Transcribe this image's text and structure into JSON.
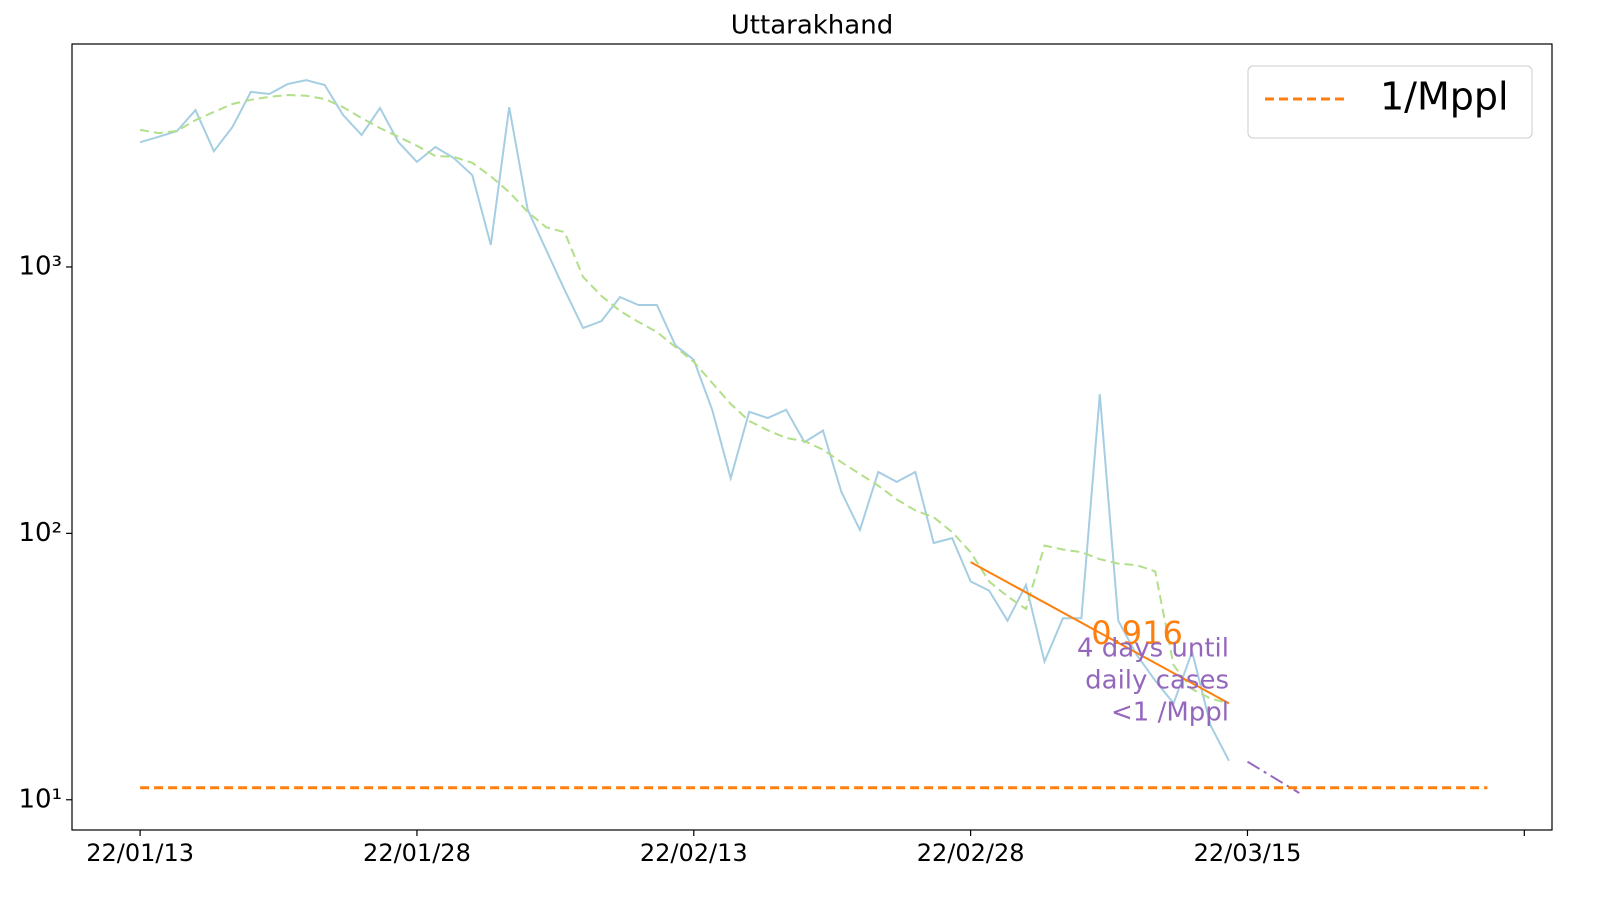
{
  "chart_data": {
    "type": "line",
    "title": "Uttarakhand",
    "yscale": "log",
    "legend": "upper right",
    "xlim": [
      -3.69,
      76.5
    ],
    "ylim": [
      7.7,
      6870
    ],
    "xticks": [
      {
        "value": 0,
        "label": "22/01/13"
      },
      {
        "value": 15,
        "label": "22/01/28"
      },
      {
        "value": 30,
        "label": "22/02/13"
      },
      {
        "value": 45,
        "label": "22/02/28"
      },
      {
        "value": 60,
        "label": "22/03/15"
      },
      {
        "value": 75,
        "label": null
      }
    ],
    "yticks": [
      {
        "value": 10,
        "label": "10¹"
      },
      {
        "value": 100,
        "label": "10²"
      },
      {
        "value": 1000,
        "label": "10³"
      }
    ],
    "series": [
      {
        "color": "#a6cee3",
        "style": "solid",
        "width": 2,
        "x": [
          0,
          1,
          2,
          3,
          4,
          5,
          6,
          7,
          8,
          9,
          10,
          11,
          12,
          13,
          14,
          15,
          16,
          17,
          18,
          19,
          20,
          21,
          22,
          23,
          24,
          25,
          26,
          27,
          28,
          29,
          30,
          31,
          32,
          33,
          34,
          35,
          36,
          37,
          38,
          39,
          40,
          41,
          42,
          43,
          44,
          45,
          46,
          47,
          48,
          49,
          50,
          51,
          52,
          53,
          54,
          55,
          56,
          57,
          58,
          59
        ],
        "values": [
          2940,
          3080,
          3240,
          3880,
          2720,
          3350,
          4540,
          4460,
          4860,
          5030,
          4820,
          3720,
          3130,
          3950,
          2940,
          2480,
          2820,
          2560,
          2210,
          1210,
          3980,
          1640,
          1160,
          820,
          590,
          627,
          771,
          720,
          720,
          509,
          448,
          291,
          161,
          286,
          271,
          291,
          220,
          243,
          143,
          103,
          170,
          156,
          170,
          92,
          96,
          66,
          61,
          47,
          64,
          33,
          48,
          48,
          333,
          47,
          35,
          28,
          23,
          36,
          19,
          14
        ]
      },
      {
        "color": "#b2df8a",
        "style": "dashed",
        "width": 2,
        "x": [
          0,
          1,
          2,
          3,
          4,
          5,
          6,
          7,
          8,
          9,
          10,
          11,
          12,
          13,
          14,
          15,
          16,
          17,
          18,
          19,
          20,
          21,
          22,
          23,
          24,
          25,
          26,
          27,
          28,
          29,
          30,
          31,
          32,
          33,
          34,
          35,
          36,
          37,
          38,
          39,
          40,
          41,
          42,
          43,
          44,
          45,
          46,
          47,
          48,
          49,
          50,
          51,
          52,
          53,
          54,
          55,
          56,
          57,
          58,
          59
        ],
        "values": [
          3270,
          3180,
          3240,
          3560,
          3820,
          4090,
          4240,
          4350,
          4420,
          4390,
          4270,
          3980,
          3620,
          3320,
          3080,
          2850,
          2610,
          2590,
          2460,
          2190,
          1910,
          1610,
          1410,
          1350,
          917,
          778,
          684,
          622,
          570,
          501,
          440,
          367,
          306,
          264,
          244,
          228,
          222,
          206,
          185,
          167,
          151,
          134,
          122,
          115,
          101,
          85,
          66,
          58,
          52,
          90,
          87,
          85,
          80,
          77,
          76,
          72,
          32,
          26,
          24,
          23
        ]
      },
      {
        "color": "#ff7f0e",
        "style": "solid",
        "width": 2,
        "x": [
          45,
          59
        ],
        "values": [
          78,
          23
        ]
      },
      {
        "color": "#9467bd",
        "style": "dashdot",
        "width": 2,
        "x": [
          60,
          62.8
        ],
        "values": [
          13.9,
          10.6
        ]
      },
      {
        "name": "1/Mppl",
        "color": "#ff7f0e",
        "style": "dashed",
        "width": 3,
        "x": [
          0,
          73
        ],
        "values": [
          11.1,
          11.1
        ]
      }
    ],
    "annotations": [
      {
        "text": "0.916",
        "color": "#ff7f0e"
      },
      {
        "lines": [
          "4 days until",
          "daily cases",
          "<1 /Mppl"
        ],
        "color": "#9467bd"
      }
    ]
  }
}
